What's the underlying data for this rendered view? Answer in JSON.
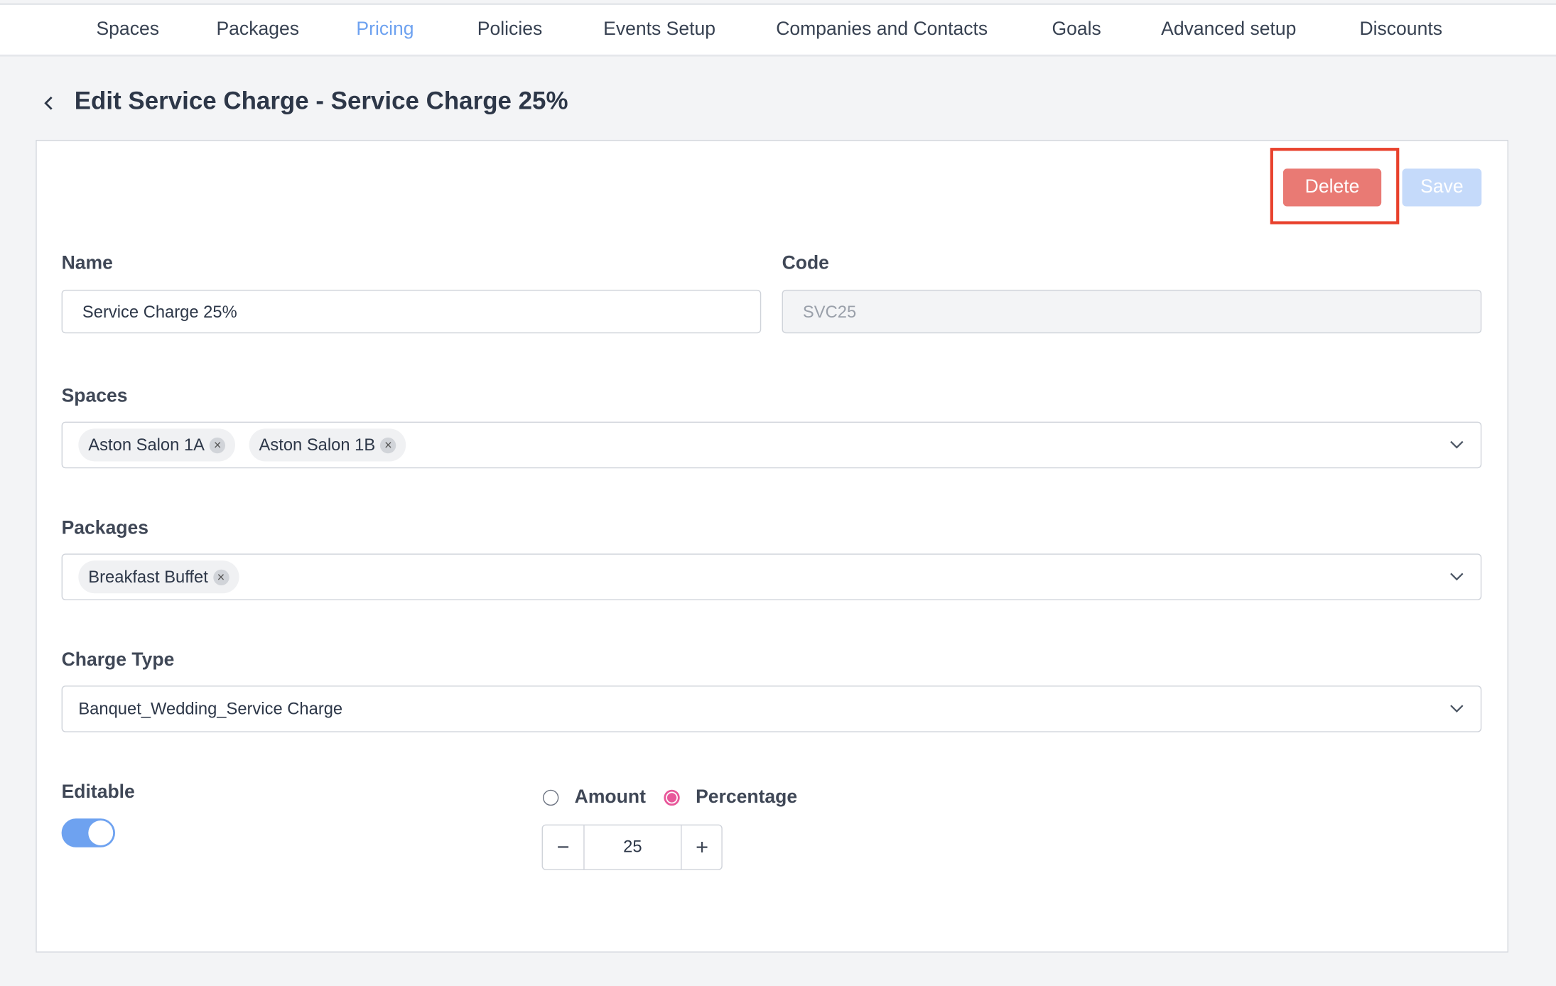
{
  "nav": {
    "items": [
      {
        "label": "Spaces"
      },
      {
        "label": "Packages"
      },
      {
        "label": "Pricing",
        "active": true
      },
      {
        "label": "Policies"
      },
      {
        "label": "Events Setup"
      },
      {
        "label": "Companies and Contacts"
      },
      {
        "label": "Goals"
      },
      {
        "label": "Advanced setup"
      },
      {
        "label": "Discounts"
      }
    ]
  },
  "page": {
    "title": "Edit Service Charge - Service Charge 25%"
  },
  "actions": {
    "delete_label": "Delete",
    "save_label": "Save"
  },
  "form": {
    "name": {
      "label": "Name",
      "value": "Service Charge 25%"
    },
    "code": {
      "label": "Code",
      "value": "SVC25"
    },
    "spaces": {
      "label": "Spaces",
      "chips": [
        "Aston Salon 1A",
        "Aston Salon 1B"
      ]
    },
    "packages": {
      "label": "Packages",
      "chips": [
        "Breakfast Buffet"
      ]
    },
    "charge_type": {
      "label": "Charge Type",
      "value": "Banquet_Wedding_Service Charge"
    },
    "editable": {
      "label": "Editable",
      "on": true
    },
    "mode": {
      "options": [
        "Amount",
        "Percentage"
      ],
      "selected": "Percentage"
    },
    "stepper": {
      "value": "25",
      "minus": "−",
      "plus": "+"
    }
  },
  "colors": {
    "accent": "#6ea2f0",
    "delete": "#e97a74",
    "save_disabled": "#c5dafa",
    "radio_selected": "#e8579a",
    "highlight": "#e8412c"
  },
  "icons": {
    "back": "chevron-left-icon",
    "chip_remove": "close-circle-icon",
    "dropdown": "chevron-down-icon"
  }
}
